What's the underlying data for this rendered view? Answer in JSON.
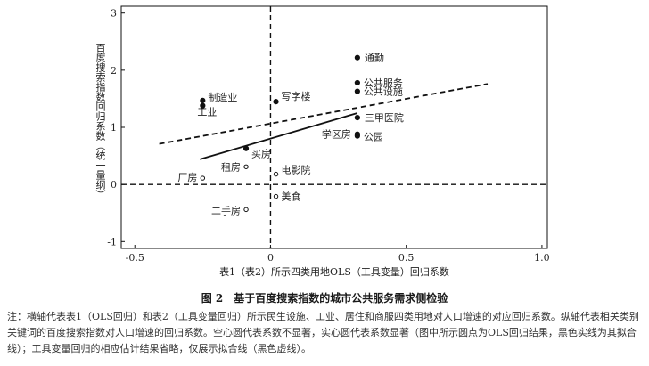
{
  "chart_data": {
    "type": "scatter",
    "xlabel": "表1（表2）所示四类用地OLS（工具变量）回归系数",
    "ylabel": "百度搜索指数回归系数（统一量纲）",
    "xlim": [
      -0.55,
      1.02
    ],
    "ylim": [
      -1.12,
      3.12
    ],
    "x_ticks": [
      -0.5,
      0,
      0.5,
      1.0
    ],
    "x_tick_labels": [
      "-0.5",
      "0",
      "0.5",
      "1.0"
    ],
    "y_ticks": [
      -1,
      0,
      1,
      2,
      3
    ],
    "y_tick_labels": [
      "-1",
      "0",
      "1",
      "2",
      "3"
    ],
    "reference_lines": {
      "x": 0,
      "y": 0
    },
    "grid": false,
    "points": [
      {
        "label": "通勤",
        "x": 0.32,
        "y": 2.22,
        "significant": true
      },
      {
        "label": "公共服务",
        "x": 0.32,
        "y": 1.78,
        "significant": true
      },
      {
        "label": "公共设施",
        "x": 0.32,
        "y": 1.63,
        "significant": true
      },
      {
        "label": "制造业",
        "x": -0.25,
        "y": 1.47,
        "significant": true
      },
      {
        "label": "工业",
        "x": -0.25,
        "y": 1.38,
        "significant": true
      },
      {
        "label": "写字楼",
        "x": 0.02,
        "y": 1.45,
        "significant": true
      },
      {
        "label": "三甲医院",
        "x": 0.32,
        "y": 1.17,
        "significant": true
      },
      {
        "label": "学区房",
        "x": 0.32,
        "y": 0.88,
        "significant": true
      },
      {
        "label": "公园",
        "x": 0.32,
        "y": 0.85,
        "significant": true
      },
      {
        "label": "买房",
        "x": -0.09,
        "y": 0.63,
        "significant": true
      },
      {
        "label": "租房",
        "x": -0.09,
        "y": 0.31,
        "significant": false
      },
      {
        "label": "电影院",
        "x": 0.02,
        "y": 0.18,
        "significant": false
      },
      {
        "label": "厂房",
        "x": -0.25,
        "y": 0.11,
        "significant": false
      },
      {
        "label": "美食",
        "x": 0.02,
        "y": -0.21,
        "significant": false
      },
      {
        "label": "二手房",
        "x": -0.09,
        "y": -0.44,
        "significant": false
      }
    ],
    "fit_lines": [
      {
        "name": "OLS回归结果",
        "style": "solid",
        "x": [
          -0.26,
          0.32
        ],
        "y": [
          0.44,
          1.25
        ]
      },
      {
        "name": "工具变量回归拟合线",
        "style": "dashed",
        "x": [
          -0.41,
          0.8
        ],
        "y": [
          0.71,
          1.76
        ]
      }
    ]
  },
  "figure": {
    "caption": "图 2　基于百度搜索指数的城市公共服务需求侧检验",
    "note": "注：横轴代表表1（OLS回归）和表2（工具变量回归）所示民生设施、工业、居住和商服四类用地对人口增速的对应回归系数。纵轴代表相关类别关键词的百度搜索指数对人口增速的回归系数。空心圆代表系数不显著，实心圆代表系数显著（图中所示圆点为OLS回归结果，黑色实线为其拟合线）；工具变量回归的相应估计结果省略，仅展示拟合线（黑色虚线）。"
  }
}
